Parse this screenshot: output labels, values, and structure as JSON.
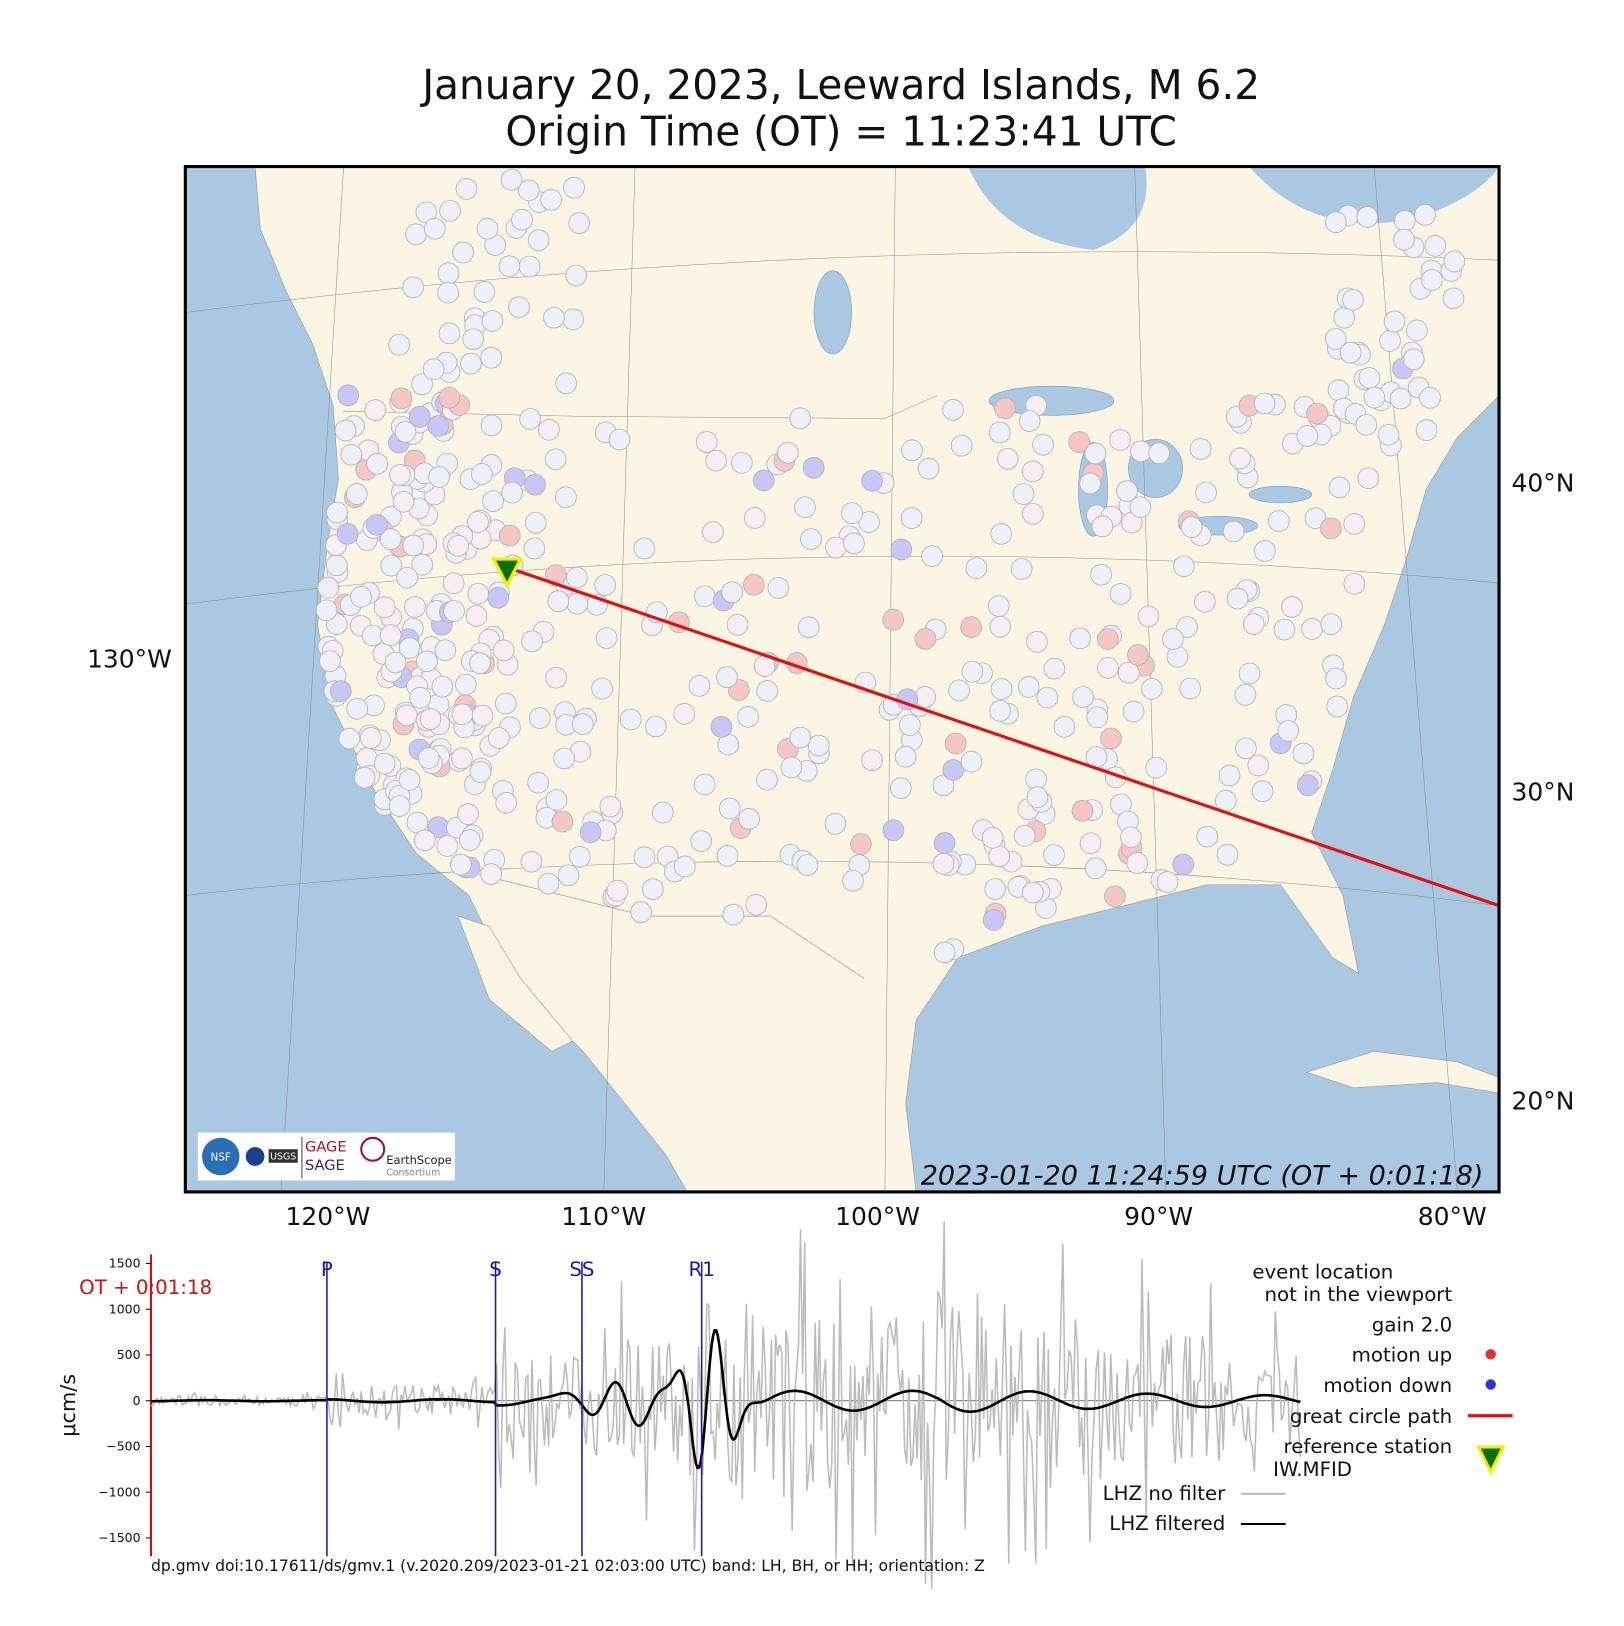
{
  "header": {
    "title_lines": [
      "January 20, 2023, Leeward Islands, M 6.2",
      "Origin Time (OT) = 11:23:41 UTC"
    ]
  },
  "map": {
    "lat_labels": [
      "40°N",
      "30°N",
      "20°N"
    ],
    "lon_label_left": "130°W",
    "lon_labels_bottom": [
      "120°W",
      "110°W",
      "100°W",
      "90°W",
      "80°W"
    ],
    "timestamp": "2023-01-20 11:24:59 UTC (OT + 0:01:18)",
    "logos": {
      "gage": "GAGE",
      "sage": "SAGE",
      "earthscope": "EarthScope",
      "consortium": "Consortium",
      "usgs": "USGS",
      "nsf": "NSF"
    }
  },
  "seismogram": {
    "type": "line",
    "ylabel": "μcm/s",
    "ylim": [
      -1700,
      1600
    ],
    "yticks": [
      1500,
      1000,
      500,
      0,
      {
        "value": -500,
        "label": "−500"
      },
      {
        "value": -1000,
        "label": "−1000"
      },
      {
        "value": -1500,
        "label": "−1500"
      }
    ],
    "time_label": "OT + 0:01:18",
    "phases": [
      "P",
      "S",
      "SS",
      "R1"
    ],
    "legend": {
      "event_note": [
        "event location",
        "not in the viewport"
      ],
      "gain": "gain  2.0",
      "motion_up": "motion up",
      "motion_down": "motion down",
      "great_circle": "great circle path",
      "reference_station": "reference station",
      "station_code": "IW.MFID",
      "no_filter": "LHZ no filter",
      "filtered": "LHZ filtered"
    }
  },
  "footer": "dp.gmv doi:10.17611/ds/gmv.1 (v.2020.209/2023-01-21 02:03:00 UTC) band: LH, BH, or HH; orientation: Z"
}
